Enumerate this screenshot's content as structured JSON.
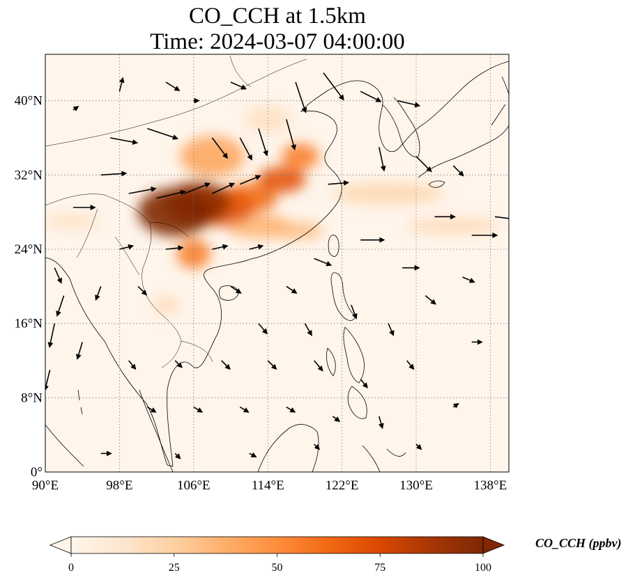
{
  "title": {
    "line1": "CO_CCH at 1.5km",
    "line2": "Time: 2024-03-07 04:00:00"
  },
  "map": {
    "lon_range": [
      90,
      140
    ],
    "lat_range": [
      0,
      45
    ],
    "lon_ticks": [
      {
        "value": 90,
        "label": "90°E"
      },
      {
        "value": 98,
        "label": "98°E"
      },
      {
        "value": 106,
        "label": "106°E"
      },
      {
        "value": 114,
        "label": "114°E"
      },
      {
        "value": 122,
        "label": "122°E"
      },
      {
        "value": 130,
        "label": "130°E"
      },
      {
        "value": 138,
        "label": "138°E"
      }
    ],
    "lat_ticks": [
      {
        "value": 0,
        "label": "0°"
      },
      {
        "value": 8,
        "label": "8°N"
      },
      {
        "value": 16,
        "label": "16°N"
      },
      {
        "value": 24,
        "label": "24°N"
      },
      {
        "value": 32,
        "label": "32°N"
      },
      {
        "value": 40,
        "label": "40°N"
      }
    ],
    "gridlines": true,
    "background_color": "#fff5eb",
    "coastline_color": "#000000"
  },
  "colorbar": {
    "label": "CO_CCH (ppbv)",
    "min": 0,
    "max": 100,
    "ticks": [
      {
        "value": 0,
        "label": "0"
      },
      {
        "value": 25,
        "label": "25"
      },
      {
        "value": 50,
        "label": "50"
      },
      {
        "value": 75,
        "label": "75"
      },
      {
        "value": 100,
        "label": "100"
      }
    ],
    "colors": [
      "#fff5eb",
      "#fee6ce",
      "#fdd0a2",
      "#fdae6b",
      "#fd8d3c",
      "#f16913",
      "#d94801",
      "#a63603",
      "#7f2704"
    ],
    "extend": "both"
  },
  "chart_data": {
    "type": "heatmap",
    "variable": "CO_CCH",
    "units": "ppbv",
    "plumes": [
      {
        "lon": 104,
        "lat": 28,
        "rlon": 4.0,
        "rlat": 2.6,
        "value": 100
      },
      {
        "lon": 106.5,
        "lat": 29,
        "rlon": 3.5,
        "rlat": 2.3,
        "value": 95
      },
      {
        "lon": 109,
        "lat": 28.5,
        "rlon": 3.5,
        "rlat": 2.0,
        "value": 70
      },
      {
        "lon": 112,
        "lat": 29.5,
        "rlon": 3.0,
        "rlat": 1.6,
        "value": 60
      },
      {
        "lon": 115.5,
        "lat": 31.5,
        "rlon": 2.6,
        "rlat": 1.4,
        "value": 70
      },
      {
        "lon": 117.5,
        "lat": 34,
        "rlon": 2.0,
        "rlat": 1.4,
        "value": 55
      },
      {
        "lon": 108,
        "lat": 34,
        "rlon": 3.5,
        "rlat": 2.2,
        "value": 40
      },
      {
        "lon": 106,
        "lat": 23.5,
        "rlon": 1.8,
        "rlat": 1.6,
        "value": 55
      },
      {
        "lon": 113,
        "lat": 26.5,
        "rlon": 3.5,
        "rlat": 1.3,
        "value": 35
      },
      {
        "lon": 117,
        "lat": 26,
        "rlon": 3.0,
        "rlat": 1.0,
        "value": 30
      },
      {
        "lon": 127,
        "lat": 30,
        "rlon": 6.0,
        "rlat": 1.2,
        "value": 20
      },
      {
        "lon": 134,
        "lat": 26.5,
        "rlon": 5.0,
        "rlat": 0.9,
        "value": 18
      },
      {
        "lon": 93,
        "lat": 27,
        "rlon": 3.0,
        "rlat": 0.8,
        "value": 15
      },
      {
        "lon": 103,
        "lat": 18,
        "rlon": 1.5,
        "rlat": 1.0,
        "value": 18
      },
      {
        "lon": 114,
        "lat": 38,
        "rlon": 2.5,
        "rlat": 1.5,
        "value": 15
      }
    ],
    "wind_vectors": [
      {
        "lon": 97,
        "lat": 36,
        "u": 1.6,
        "v": -0.3
      },
      {
        "lon": 101,
        "lat": 37,
        "u": 1.8,
        "v": -0.6
      },
      {
        "lon": 96,
        "lat": 32,
        "u": 1.5,
        "v": 0.1
      },
      {
        "lon": 99,
        "lat": 30,
        "u": 1.6,
        "v": 0.3
      },
      {
        "lon": 102,
        "lat": 29.5,
        "u": 1.7,
        "v": 0.4
      },
      {
        "lon": 105,
        "lat": 30,
        "u": 1.5,
        "v": 0.6
      },
      {
        "lon": 108,
        "lat": 30,
        "u": 1.3,
        "v": 0.6
      },
      {
        "lon": 111,
        "lat": 31,
        "u": 1.2,
        "v": 0.5
      },
      {
        "lon": 108,
        "lat": 36,
        "u": 0.9,
        "v": -1.2
      },
      {
        "lon": 111,
        "lat": 36,
        "u": 0.7,
        "v": -1.3
      },
      {
        "lon": 113,
        "lat": 37,
        "u": 0.5,
        "v": -1.6
      },
      {
        "lon": 116,
        "lat": 38,
        "u": 0.5,
        "v": -1.8
      },
      {
        "lon": 117,
        "lat": 42,
        "u": 0.6,
        "v": -1.8
      },
      {
        "lon": 120,
        "lat": 43,
        "u": 1.2,
        "v": -1.6
      },
      {
        "lon": 124,
        "lat": 41,
        "u": 1.2,
        "v": -0.6
      },
      {
        "lon": 128,
        "lat": 40,
        "u": 1.3,
        "v": -0.3
      },
      {
        "lon": 126,
        "lat": 35,
        "u": 0.3,
        "v": -1.4
      },
      {
        "lon": 130,
        "lat": 34,
        "u": 0.9,
        "v": -0.9
      },
      {
        "lon": 134,
        "lat": 33,
        "u": 0.6,
        "v": -0.6
      },
      {
        "lon": 132,
        "lat": 27.5,
        "u": 1.2,
        "v": 0.0
      },
      {
        "lon": 136,
        "lat": 25.5,
        "u": 1.5,
        "v": 0.0
      },
      {
        "lon": 138.5,
        "lat": 27.5,
        "u": 1.6,
        "v": -0.2
      },
      {
        "lon": 124,
        "lat": 25,
        "u": 1.4,
        "v": 0.0
      },
      {
        "lon": 119,
        "lat": 23,
        "u": 1.0,
        "v": -0.4
      },
      {
        "lon": 116,
        "lat": 20,
        "u": 0.6,
        "v": -0.4
      },
      {
        "lon": 112,
        "lat": 24,
        "u": 0.8,
        "v": 0.2
      },
      {
        "lon": 108,
        "lat": 24,
        "u": 0.9,
        "v": 0.2
      },
      {
        "lon": 103,
        "lat": 24,
        "u": 1.0,
        "v": 0.1
      },
      {
        "lon": 98,
        "lat": 24,
        "u": 0.8,
        "v": 0.2
      },
      {
        "lon": 91,
        "lat": 22,
        "u": 0.4,
        "v": -0.9
      },
      {
        "lon": 92,
        "lat": 19,
        "u": -0.4,
        "v": -1.2
      },
      {
        "lon": 91,
        "lat": 16,
        "u": -0.3,
        "v": -1.4
      },
      {
        "lon": 94,
        "lat": 14,
        "u": -0.3,
        "v": -1.0
      },
      {
        "lon": 90.5,
        "lat": 11,
        "u": -0.3,
        "v": -1.2
      },
      {
        "lon": 96,
        "lat": 20,
        "u": -0.3,
        "v": -0.8
      },
      {
        "lon": 100,
        "lat": 20,
        "u": 0.5,
        "v": -0.5
      },
      {
        "lon": 110,
        "lat": 20,
        "u": 0.6,
        "v": -0.4
      },
      {
        "lon": 113,
        "lat": 16,
        "u": 0.5,
        "v": -0.6
      },
      {
        "lon": 118,
        "lat": 16,
        "u": 0.4,
        "v": -0.7
      },
      {
        "lon": 123,
        "lat": 18,
        "u": 0.3,
        "v": -0.8
      },
      {
        "lon": 127,
        "lat": 16,
        "u": 0.3,
        "v": -0.7
      },
      {
        "lon": 131,
        "lat": 19,
        "u": 0.6,
        "v": -0.5
      },
      {
        "lon": 135,
        "lat": 21,
        "u": 0.7,
        "v": -0.3
      },
      {
        "lon": 136,
        "lat": 14,
        "u": 0.6,
        "v": 0.0
      },
      {
        "lon": 129,
        "lat": 12,
        "u": 0.4,
        "v": -0.5
      },
      {
        "lon": 124,
        "lat": 10,
        "u": 0.4,
        "v": -0.5
      },
      {
        "lon": 119,
        "lat": 12,
        "u": 0.5,
        "v": -0.6
      },
      {
        "lon": 114,
        "lat": 12,
        "u": 0.5,
        "v": -0.5
      },
      {
        "lon": 109,
        "lat": 12,
        "u": 0.5,
        "v": -0.5
      },
      {
        "lon": 104,
        "lat": 12,
        "u": 0.4,
        "v": -0.4
      },
      {
        "lon": 99,
        "lat": 12,
        "u": 0.4,
        "v": -0.5
      },
      {
        "lon": 101,
        "lat": 7,
        "u": 0.5,
        "v": -0.3
      },
      {
        "lon": 106,
        "lat": 7,
        "u": 0.5,
        "v": -0.3
      },
      {
        "lon": 111,
        "lat": 7,
        "u": 0.5,
        "v": -0.3
      },
      {
        "lon": 116,
        "lat": 7,
        "u": 0.5,
        "v": -0.3
      },
      {
        "lon": 121,
        "lat": 6,
        "u": 0.4,
        "v": -0.3
      },
      {
        "lon": 126,
        "lat": 6,
        "u": 0.2,
        "v": -0.7
      },
      {
        "lon": 134,
        "lat": 7,
        "u": 0.3,
        "v": 0.2
      },
      {
        "lon": 96,
        "lat": 2,
        "u": 0.6,
        "v": 0.0
      },
      {
        "lon": 104,
        "lat": 2,
        "u": 0.3,
        "v": -0.3
      },
      {
        "lon": 112,
        "lat": 2,
        "u": 0.4,
        "v": -0.2
      },
      {
        "lon": 119,
        "lat": 3,
        "u": 0.3,
        "v": -0.3
      },
      {
        "lon": 130,
        "lat": 3,
        "u": 0.3,
        "v": -0.3
      },
      {
        "lon": 98,
        "lat": 41,
        "u": 0.2,
        "v": 0.8
      },
      {
        "lon": 103,
        "lat": 42,
        "u": 0.8,
        "v": -0.5
      },
      {
        "lon": 110,
        "lat": 42,
        "u": 0.9,
        "v": -0.4
      },
      {
        "lon": 93,
        "lat": 39,
        "u": 0.3,
        "v": 0.2
      },
      {
        "lon": 93,
        "lat": 28.5,
        "u": 1.3,
        "v": 0.0
      },
      {
        "lon": 106,
        "lat": 40,
        "u": 0.3,
        "v": 0.0
      },
      {
        "lon": 120.5,
        "lat": 31,
        "u": 1.2,
        "v": 0.1
      },
      {
        "lon": 128.5,
        "lat": 22,
        "u": 1.0,
        "v": 0.0
      }
    ]
  }
}
